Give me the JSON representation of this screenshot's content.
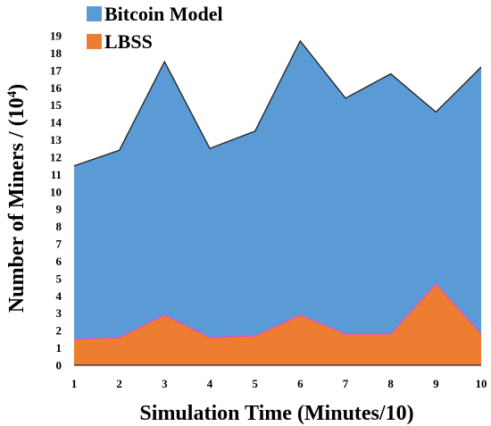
{
  "chart_data": {
    "type": "area",
    "x": [
      1,
      2,
      3,
      4,
      5,
      6,
      7,
      8,
      9,
      10
    ],
    "series": [
      {
        "name": "Bitcoin Model",
        "values": [
          11.5,
          12.4,
          17.5,
          12.5,
          13.5,
          18.7,
          15.4,
          16.8,
          14.6,
          17.2
        ],
        "color": "#5b9bd5"
      },
      {
        "name": "LBSS",
        "values": [
          1.5,
          1.6,
          2.9,
          1.6,
          1.7,
          2.9,
          1.8,
          1.8,
          4.7,
          1.8
        ],
        "color": "#ed7d31"
      }
    ],
    "xlabel": "Simulation Time (Minutes/10)",
    "ylabel": "Number of Miners / (10",
    "ylabel_exponent": "4",
    "ylabel_suffix": ")",
    "xlim": [
      1,
      10
    ],
    "ylim": [
      0,
      19
    ],
    "yticks": [
      0,
      1,
      2,
      3,
      4,
      5,
      6,
      7,
      8,
      9,
      10,
      11,
      12,
      13,
      14,
      15,
      16,
      17,
      18,
      19
    ],
    "xticks": [
      1,
      2,
      3,
      4,
      5,
      6,
      7,
      8,
      9,
      10
    ],
    "grid": false,
    "legend_position": "top-left"
  }
}
